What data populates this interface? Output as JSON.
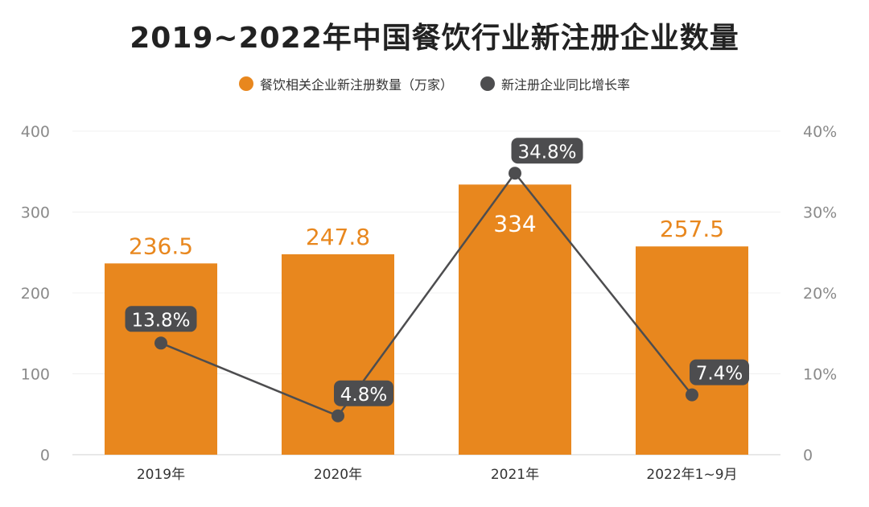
{
  "chart_data": {
    "type": "bar",
    "title": "2019~2022年中国餐饮行业新注册企业数量",
    "categories": [
      "2019年",
      "2020年",
      "2021年",
      "2022年1~9月"
    ],
    "series": [
      {
        "name": "餐饮相关企业新注册数量（万家）",
        "type": "bar",
        "axis": "left",
        "values": [
          236.5,
          247.8,
          334,
          257.5
        ],
        "labels": [
          "236.5",
          "247.8",
          "334",
          "257.5"
        ],
        "color": "#E8871E"
      },
      {
        "name": "新注册企业同比增长率",
        "type": "line",
        "axis": "right",
        "values": [
          13.8,
          4.8,
          34.8,
          7.4
        ],
        "labels": [
          "13.8%",
          "4.8%",
          "34.8%",
          "7.4%"
        ],
        "color": "#4D4D4F"
      }
    ],
    "y_left": {
      "range": [
        0,
        400
      ],
      "ticks": [
        "0",
        "100",
        "200",
        "300",
        "400"
      ]
    },
    "y_right": {
      "range": [
        0,
        40
      ],
      "ticks": [
        "0",
        "10%",
        "20%",
        "30%",
        "40%"
      ]
    },
    "grid": true,
    "legend": "top-center"
  }
}
